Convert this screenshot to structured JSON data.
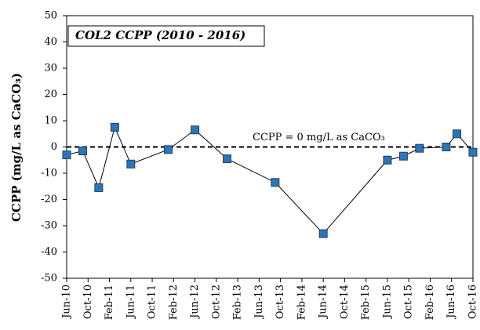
{
  "chart_data": {
    "type": "line",
    "title": "COL2 CCPP (2010 - 2016)",
    "y_label": "CCPP (mg/L as CaCO₃)",
    "x": [
      "Jun-10",
      "Sep-10",
      "Dec-10",
      "Mar-11",
      "Jun-11",
      "Jan-12",
      "Jun-12",
      "Dec-12",
      "Sep-13",
      "Jun-14",
      "Jun-15",
      "Sep-15",
      "Dec-15",
      "May-16",
      "Jul-16",
      "Oct-16"
    ],
    "series": [
      {
        "name": "CCPP",
        "color": "#2e75b6",
        "values": [
          -3,
          -1.5,
          -15.5,
          7.5,
          -6.5,
          -1,
          6.5,
          -4.5,
          -13.5,
          -33,
          -5,
          -3.5,
          -0.5,
          0,
          5,
          -2
        ]
      }
    ],
    "xlim": [
      "Jun-10",
      "Oct-16"
    ],
    "xticks": [
      "Jun-10",
      "Oct-10",
      "Feb-11",
      "Jun-11",
      "Oct-11",
      "Feb-12",
      "Jun-12",
      "Oct-12",
      "Feb-13",
      "Jun-13",
      "Oct-13",
      "Feb-14",
      "Jun-14",
      "Oct-14",
      "Feb-15",
      "Jun-15",
      "Oct-15",
      "Feb-16",
      "Jun-16",
      "Oct-16"
    ],
    "ylim": [
      -50,
      50
    ],
    "yticks": [
      -50,
      -40,
      -30,
      -20,
      -10,
      0,
      10,
      20,
      30,
      40,
      50
    ],
    "reference_line": {
      "value": 0,
      "label": "CCPP = 0 mg/L as CaCO₃"
    }
  }
}
